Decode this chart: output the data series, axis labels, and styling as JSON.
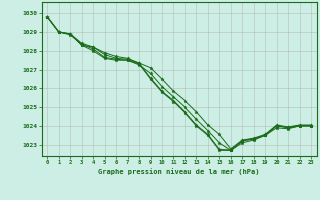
{
  "bg_color": "#cceee4",
  "grid_color": "#b0b0b0",
  "line_color": "#1a6b1a",
  "marker_color": "#1a6b1a",
  "xlabel": "Graphe pression niveau de la mer (hPa)",
  "xlabel_color": "#1a6b1a",
  "xtick_color": "#1a6b1a",
  "ytick_color": "#1a6b1a",
  "xlim": [
    -0.5,
    23.5
  ],
  "ylim": [
    1022.4,
    1030.6
  ],
  "yticks": [
    1023,
    1024,
    1025,
    1026,
    1027,
    1028,
    1029,
    1030
  ],
  "xticks": [
    0,
    1,
    2,
    3,
    4,
    5,
    6,
    7,
    8,
    9,
    10,
    11,
    12,
    13,
    14,
    15,
    16,
    17,
    18,
    19,
    20,
    21,
    22,
    23
  ],
  "series": [
    [
      1029.8,
      1029.0,
      1028.85,
      1028.35,
      1028.1,
      1027.65,
      1027.55,
      1027.5,
      1027.25,
      1026.8,
      1026.1,
      1025.55,
      1025.0,
      1024.35,
      1023.75,
      1023.1,
      1022.7,
      1023.1,
      1023.25,
      1023.5,
      1023.9,
      1023.85,
      1024.0,
      1024.0
    ],
    [
      1029.8,
      1029.0,
      1028.9,
      1028.3,
      1028.0,
      1027.6,
      1027.5,
      1027.5,
      1027.3,
      1026.5,
      1025.8,
      1025.3,
      1024.7,
      1024.0,
      1023.5,
      1022.7,
      1022.7,
      1023.2,
      1023.3,
      1023.5,
      1024.0,
      1023.9,
      1024.0,
      1024.0
    ],
    [
      1029.8,
      1029.0,
      1028.9,
      1028.3,
      1028.2,
      1027.8,
      1027.6,
      1027.55,
      1027.35,
      1026.55,
      1025.85,
      1025.35,
      1024.75,
      1024.05,
      1023.55,
      1022.75,
      1022.72,
      1023.22,
      1023.32,
      1023.52,
      1024.02,
      1023.92,
      1024.02,
      1024.02
    ],
    [
      1029.8,
      1029.0,
      1028.9,
      1028.4,
      1028.2,
      1027.9,
      1027.7,
      1027.6,
      1027.35,
      1027.1,
      1026.5,
      1025.85,
      1025.35,
      1024.75,
      1024.05,
      1023.55,
      1022.78,
      1023.25,
      1023.35,
      1023.55,
      1024.05,
      1023.95,
      1024.05,
      1024.05
    ]
  ]
}
